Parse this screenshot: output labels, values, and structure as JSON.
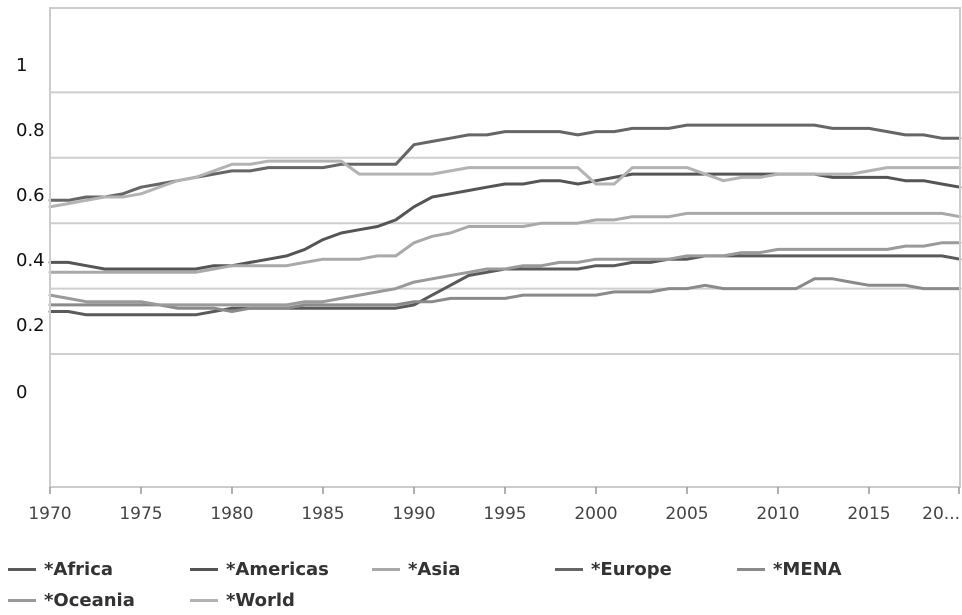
{
  "chart_data": {
    "type": "line",
    "y_ticks": [
      "1",
      "0.8",
      "0.6",
      "0.4",
      "0.2",
      "0"
    ],
    "x_ticks": [
      "1970",
      "1975",
      "1980",
      "1985",
      "1990",
      "1995",
      "2000",
      "2005",
      "2010",
      "2015",
      "20..."
    ],
    "xlim": [
      1970,
      2020
    ],
    "grid": "horizontal",
    "legend_position": "bottom",
    "x": [
      1970,
      1971,
      1972,
      1973,
      1974,
      1975,
      1976,
      1977,
      1978,
      1979,
      1980,
      1981,
      1982,
      1983,
      1984,
      1985,
      1986,
      1987,
      1988,
      1989,
      1990,
      1991,
      1992,
      1993,
      1994,
      1995,
      1996,
      1997,
      1998,
      1999,
      2000,
      2001,
      2002,
      2003,
      2004,
      2005,
      2006,
      2007,
      2008,
      2009,
      2010,
      2011,
      2012,
      2013,
      2014,
      2015,
      2016,
      2017,
      2018,
      2019,
      2020
    ],
    "series": [
      {
        "name": "*Africa",
        "color": "#5a5a5a",
        "values": [
          0.13,
          0.13,
          0.12,
          0.12,
          0.12,
          0.12,
          0.12,
          0.12,
          0.12,
          0.13,
          0.14,
          0.14,
          0.14,
          0.14,
          0.14,
          0.14,
          0.14,
          0.14,
          0.14,
          0.14,
          0.15,
          0.18,
          0.21,
          0.24,
          0.25,
          0.26,
          0.26,
          0.26,
          0.26,
          0.26,
          0.27,
          0.27,
          0.28,
          0.28,
          0.29,
          0.29,
          0.3,
          0.3,
          0.3,
          0.3,
          0.3,
          0.3,
          0.3,
          0.3,
          0.3,
          0.3,
          0.3,
          0.3,
          0.3,
          0.3,
          0.29
        ]
      },
      {
        "name": "*Americas",
        "color": "#555555",
        "values": [
          0.28,
          0.28,
          0.27,
          0.26,
          0.26,
          0.26,
          0.26,
          0.26,
          0.26,
          0.27,
          0.27,
          0.28,
          0.29,
          0.3,
          0.32,
          0.35,
          0.37,
          0.38,
          0.39,
          0.41,
          0.45,
          0.48,
          0.49,
          0.5,
          0.51,
          0.52,
          0.52,
          0.53,
          0.53,
          0.52,
          0.53,
          0.54,
          0.55,
          0.55,
          0.55,
          0.55,
          0.55,
          0.55,
          0.55,
          0.55,
          0.55,
          0.55,
          0.55,
          0.54,
          0.54,
          0.54,
          0.54,
          0.53,
          0.53,
          0.52,
          0.51
        ]
      },
      {
        "name": "*Asia",
        "color": "#a9a9a9",
        "values": [
          0.25,
          0.25,
          0.25,
          0.25,
          0.25,
          0.25,
          0.25,
          0.25,
          0.25,
          0.26,
          0.27,
          0.27,
          0.27,
          0.27,
          0.28,
          0.29,
          0.29,
          0.29,
          0.3,
          0.3,
          0.34,
          0.36,
          0.37,
          0.39,
          0.39,
          0.39,
          0.39,
          0.4,
          0.4,
          0.4,
          0.41,
          0.41,
          0.42,
          0.42,
          0.42,
          0.43,
          0.43,
          0.43,
          0.43,
          0.43,
          0.43,
          0.43,
          0.43,
          0.43,
          0.43,
          0.43,
          0.43,
          0.43,
          0.43,
          0.43,
          0.42
        ]
      },
      {
        "name": "*Europe",
        "color": "#666666",
        "values": [
          0.47,
          0.47,
          0.48,
          0.48,
          0.49,
          0.51,
          0.52,
          0.53,
          0.54,
          0.55,
          0.56,
          0.56,
          0.57,
          0.57,
          0.57,
          0.57,
          0.58,
          0.58,
          0.58,
          0.58,
          0.64,
          0.65,
          0.66,
          0.67,
          0.67,
          0.68,
          0.68,
          0.68,
          0.68,
          0.67,
          0.68,
          0.68,
          0.69,
          0.69,
          0.69,
          0.7,
          0.7,
          0.7,
          0.7,
          0.7,
          0.7,
          0.7,
          0.7,
          0.69,
          0.69,
          0.69,
          0.68,
          0.67,
          0.67,
          0.66,
          0.66
        ]
      },
      {
        "name": "*MENA",
        "color": "#8a8a8a",
        "values": [
          0.15,
          0.15,
          0.15,
          0.15,
          0.15,
          0.15,
          0.15,
          0.14,
          0.14,
          0.14,
          0.13,
          0.14,
          0.14,
          0.14,
          0.15,
          0.15,
          0.15,
          0.15,
          0.15,
          0.15,
          0.16,
          0.16,
          0.17,
          0.17,
          0.17,
          0.17,
          0.18,
          0.18,
          0.18,
          0.18,
          0.18,
          0.19,
          0.19,
          0.19,
          0.2,
          0.2,
          0.21,
          0.2,
          0.2,
          0.2,
          0.2,
          0.2,
          0.23,
          0.23,
          0.22,
          0.21,
          0.21,
          0.21,
          0.2,
          0.2,
          0.2
        ]
      },
      {
        "name": "*Oceania",
        "color": "#9a9a9a",
        "values": [
          0.18,
          0.17,
          0.16,
          0.16,
          0.16,
          0.16,
          0.15,
          0.15,
          0.15,
          0.15,
          0.15,
          0.15,
          0.15,
          0.15,
          0.16,
          0.16,
          0.17,
          0.18,
          0.19,
          0.2,
          0.22,
          0.23,
          0.24,
          0.25,
          0.26,
          0.26,
          0.27,
          0.27,
          0.28,
          0.28,
          0.29,
          0.29,
          0.29,
          0.29,
          0.29,
          0.3,
          0.3,
          0.3,
          0.31,
          0.31,
          0.32,
          0.32,
          0.32,
          0.32,
          0.32,
          0.32,
          0.32,
          0.33,
          0.33,
          0.34,
          0.34
        ]
      },
      {
        "name": "*World",
        "color": "#b3b3b3",
        "values": [
          0.45,
          0.46,
          0.47,
          0.48,
          0.48,
          0.49,
          0.51,
          0.53,
          0.54,
          0.56,
          0.58,
          0.58,
          0.59,
          0.59,
          0.59,
          0.59,
          0.59,
          0.55,
          0.55,
          0.55,
          0.55,
          0.55,
          0.56,
          0.57,
          0.57,
          0.57,
          0.57,
          0.57,
          0.57,
          0.57,
          0.52,
          0.52,
          0.57,
          0.57,
          0.57,
          0.57,
          0.55,
          0.53,
          0.54,
          0.54,
          0.55,
          0.55,
          0.55,
          0.55,
          0.55,
          0.56,
          0.57,
          0.57,
          0.57,
          0.57,
          0.57
        ]
      }
    ]
  }
}
